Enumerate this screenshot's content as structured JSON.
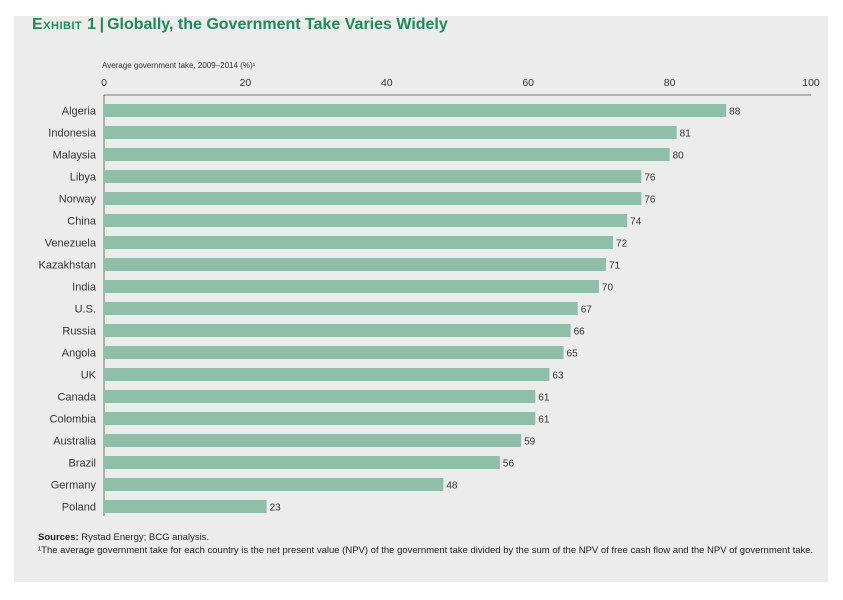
{
  "header": {
    "exhibit": "Exhibit 1",
    "separator": "|",
    "title": "Globally, the Government Take Varies Widely"
  },
  "colors": {
    "bar": "#8fbfaa",
    "accent": "#1f8a5a",
    "panel": "#ececec"
  },
  "chart_data": {
    "type": "bar",
    "orientation": "horizontal",
    "title": "Globally, the Government Take Varies Widely",
    "xlabel": "Average government take, 2009–2014 (%)¹",
    "ylabel": "",
    "xlim": [
      0,
      100
    ],
    "xticks": [
      "0",
      "20",
      "40",
      "60",
      "80",
      "100"
    ],
    "categories": [
      "Algeria",
      "Indonesia",
      "Malaysia",
      "Libya",
      "Norway",
      "China",
      "Venezuela",
      "Kazakhstan",
      "India",
      "U.S.",
      "Russia",
      "Angola",
      "UK",
      "Canada",
      "Colombia",
      "Australia",
      "Brazil",
      "Germany",
      "Poland"
    ],
    "values": [
      88,
      81,
      80,
      76,
      76,
      74,
      72,
      71,
      70,
      67,
      66,
      65,
      63,
      61,
      61,
      59,
      56,
      48,
      23
    ],
    "grid": false,
    "legend": "none"
  },
  "footer": {
    "sources_label": "Sources:",
    "sources_text": "Rystad Energy; BCG analysis.",
    "footnote": "¹The average government take for each country is the net present value (NPV) of the government take divided by the sum of the NPV of free cash flow and the NPV of government take."
  }
}
